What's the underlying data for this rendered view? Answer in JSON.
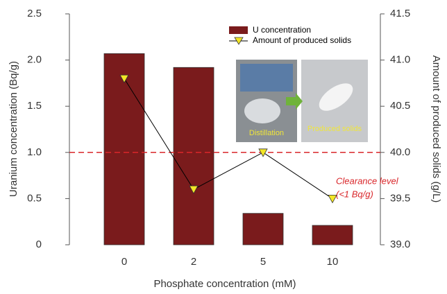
{
  "chart_data": {
    "type": "bar",
    "xlabel": "Phosphate concentration (mM)",
    "ylabel": "Uranium concentration (Bq/g)",
    "y2label": "Amount of produced solids (g/L)",
    "categories": [
      "0",
      "2",
      "5",
      "10"
    ],
    "series": [
      {
        "name": "U concentration",
        "type": "bar",
        "color": "#7a1b1c",
        "values": [
          2.07,
          1.92,
          0.34,
          0.21
        ]
      },
      {
        "name": "Amount of produced solids",
        "type": "line",
        "axis": "y2",
        "color": "#000000",
        "marker_color": "#f3e626",
        "values": [
          40.8,
          39.6,
          40.0,
          39.5
        ]
      }
    ],
    "ylim": [
      0,
      2.5
    ],
    "yticks": [
      0,
      0.5,
      {
        "value": 1,
        "label": "1.0"
      },
      1.5,
      {
        "value": 2,
        "label": "2.0"
      },
      2.5
    ],
    "y2lim": [
      39,
      41.5
    ],
    "y2ticks": [
      {
        "value": 39,
        "label": "39.0"
      },
      39.5,
      {
        "value": 40,
        "label": "40.0"
      },
      40.5,
      {
        "value": 41,
        "label": "41.0"
      },
      41.5
    ],
    "reference_line": {
      "value": 1,
      "color": "#d9262a",
      "label": "Clearance level",
      "sublabel": "(<1 Bq/g)"
    },
    "inset": {
      "labels": [
        "Distillation",
        "Produced solids"
      ]
    },
    "legend": "top-right"
  }
}
